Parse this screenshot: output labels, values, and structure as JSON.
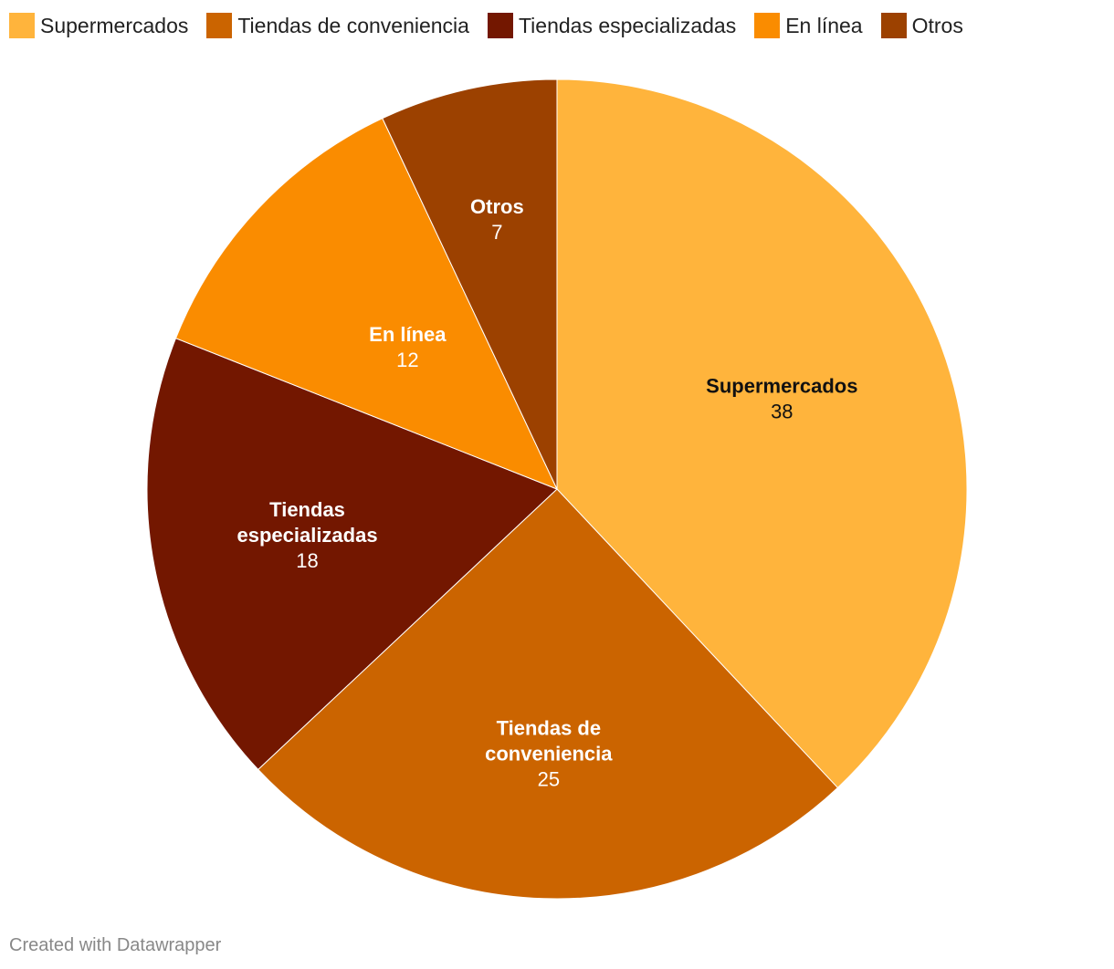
{
  "chart_data": {
    "type": "pie",
    "legend_position": "top-left",
    "slices": [
      {
        "label": "Supermercados",
        "label_lines": [
          "Supermercados"
        ],
        "value": 38,
        "value_label": "38",
        "color": "#ffb43c",
        "text_color": "#111111"
      },
      {
        "label": "Tiendas de conveniencia",
        "label_lines": [
          "Tiendas de",
          "conveniencia"
        ],
        "value": 25,
        "value_label": "25",
        "color": "#cb6400",
        "text_color": "#ffffff"
      },
      {
        "label": "Tiendas especializadas",
        "label_lines": [
          "Tiendas",
          "especializadas"
        ],
        "value": 18,
        "value_label": "18",
        "color": "#731700",
        "text_color": "#ffffff"
      },
      {
        "label": "En línea",
        "label_lines": [
          "En línea"
        ],
        "value": 12,
        "value_label": "12",
        "color": "#fa8c00",
        "text_color": "#ffffff"
      },
      {
        "label": "Otros",
        "label_lines": [
          "Otros"
        ],
        "value": 7,
        "value_label": "7",
        "color": "#9c4100",
        "text_color": "#ffffff"
      }
    ]
  },
  "footer": "Created with Datawrapper"
}
